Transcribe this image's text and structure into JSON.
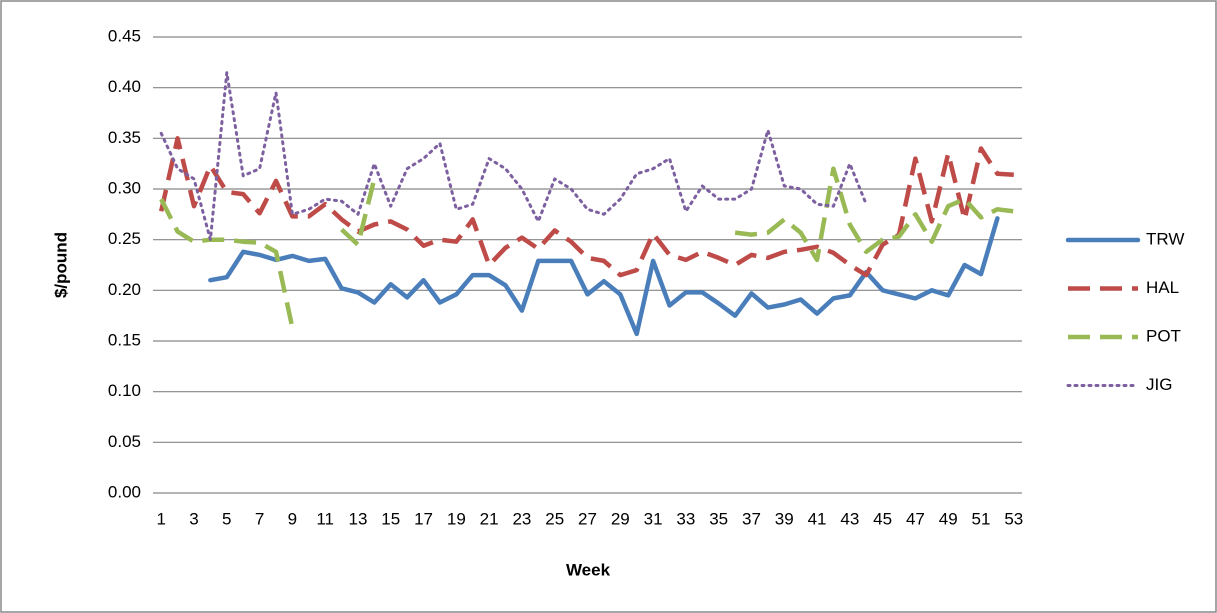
{
  "chart_data": {
    "type": "line",
    "y_label": "$/pound",
    "x_label": "Week",
    "categories": [
      "1",
      null,
      "3",
      null,
      "5",
      null,
      "7",
      null,
      "9",
      null,
      "11",
      null,
      "13",
      null,
      "15",
      null,
      "17",
      null,
      "19",
      null,
      "21",
      null,
      "23",
      null,
      "25",
      null,
      "27",
      null,
      "29",
      null,
      "31",
      null,
      "33",
      null,
      "35",
      null,
      "37",
      null,
      "39",
      null,
      "41",
      null,
      "43",
      null,
      "45",
      null,
      "47",
      null,
      "49",
      null,
      "51",
      null,
      "53"
    ],
    "ylim": [
      0,
      0.45
    ],
    "yticks": [
      {
        "value": 0,
        "label": "0.00"
      },
      0.05,
      {
        "value": 0.1,
        "label": "0.10"
      },
      0.15,
      {
        "value": 0.2,
        "label": "0.20"
      },
      0.25,
      {
        "value": 0.3,
        "label": "0.30"
      },
      0.35,
      {
        "value": 0.4,
        "label": "0.40"
      },
      0.45
    ],
    "grid": true,
    "legend": "right",
    "series": [
      {
        "name": "TRW",
        "color": "#4a7ebb",
        "style": "solid",
        "values": [
          null,
          null,
          null,
          0.21,
          0.213,
          0.238,
          0.235,
          0.23,
          0.234,
          0.229,
          0.231,
          0.202,
          0.198,
          0.188,
          0.206,
          0.193,
          0.21,
          0.188,
          0.196,
          0.215,
          0.215,
          0.205,
          0.18,
          0.229,
          0.229,
          0.229,
          0.196,
          0.209,
          0.196,
          0.157,
          0.229,
          0.185,
          0.198,
          0.198,
          0.187,
          0.175,
          0.197,
          0.183,
          0.186,
          0.191,
          0.177,
          0.192,
          0.195,
          0.218,
          0.2,
          0.196,
          0.192,
          0.2,
          0.195,
          0.225,
          0.216,
          0.271,
          null
        ]
      },
      {
        "name": "HAL",
        "color": "#be4b48",
        "style": "dash",
        "values": [
          0.278,
          0.35,
          0.283,
          0.323,
          0.297,
          0.295,
          0.276,
          0.308,
          0.273,
          0.273,
          0.285,
          0.27,
          0.258,
          0.265,
          0.268,
          0.26,
          0.244,
          0.25,
          0.248,
          0.27,
          0.225,
          0.242,
          0.252,
          0.241,
          0.259,
          0.248,
          0.232,
          0.229,
          0.215,
          0.22,
          0.256,
          0.235,
          0.23,
          0.238,
          0.232,
          0.225,
          0.235,
          0.232,
          0.238,
          0.24,
          0.243,
          0.237,
          0.225,
          0.215,
          0.245,
          0.255,
          0.33,
          0.268,
          0.335,
          0.27,
          0.34,
          0.315,
          0.314
        ]
      },
      {
        "name": "POT",
        "color": "#98b954",
        "style": "dash",
        "values": [
          0.29,
          0.258,
          0.248,
          0.25,
          0.25,
          0.248,
          0.247,
          0.238,
          0.163,
          null,
          null,
          0.26,
          0.245,
          0.31,
          null,
          null,
          null,
          null,
          null,
          null,
          null,
          null,
          null,
          null,
          null,
          null,
          null,
          null,
          null,
          null,
          null,
          null,
          null,
          null,
          null,
          0.257,
          0.255,
          0.257,
          0.27,
          0.257,
          0.23,
          0.32,
          0.265,
          0.238,
          0.25,
          0.253,
          0.275,
          0.248,
          0.283,
          0.29,
          0.272,
          0.28,
          0.278
        ]
      },
      {
        "name": "JIG",
        "color": "#7d60a0",
        "style": "dot",
        "values": [
          0.355,
          0.32,
          0.31,
          0.25,
          0.415,
          0.313,
          0.32,
          0.395,
          0.275,
          0.28,
          0.29,
          0.288,
          0.275,
          0.325,
          0.283,
          0.32,
          0.33,
          0.345,
          0.28,
          0.285,
          0.33,
          0.32,
          0.3,
          0.268,
          0.31,
          0.3,
          0.28,
          0.275,
          0.29,
          0.315,
          0.32,
          0.33,
          0.278,
          0.303,
          0.29,
          0.29,
          0.3,
          0.358,
          0.303,
          0.3,
          0.285,
          0.283,
          0.325,
          0.285,
          null,
          null,
          null,
          null,
          null,
          null,
          null,
          null,
          null
        ]
      }
    ]
  }
}
